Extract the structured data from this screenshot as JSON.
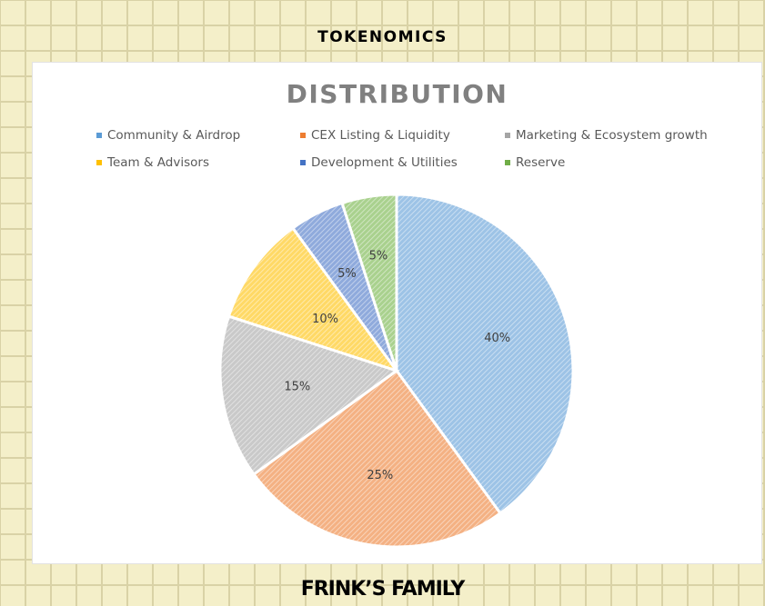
{
  "header": {
    "title": "TOKENOMICS"
  },
  "footer": {
    "title": "FRINK’S FAMILY"
  },
  "chart_data": {
    "type": "pie",
    "title": "DISTRIBUTION",
    "legend_position": "top",
    "categories": [
      "Community & Airdrop",
      "CEX Listing & Liquidity",
      "Marketing & Ecosystem growth",
      "Team & Advisors",
      "Development & Utilities",
      "Reserve"
    ],
    "values": [
      40,
      25,
      15,
      10,
      5,
      5
    ],
    "labels": [
      "40%",
      "25%",
      "15%",
      "10%",
      "5%",
      "5%"
    ],
    "colors": [
      "#9dc3e6",
      "#f4b183",
      "#c9c9c9",
      "#ffd966",
      "#8faadc",
      "#a9d18e"
    ],
    "legend_colors": [
      "#5b9bd5",
      "#ed7d31",
      "#a5a5a5",
      "#ffc000",
      "#4472c4",
      "#70ad47"
    ],
    "start_angle_deg": 0,
    "direction": "clockwise",
    "fill_style": "diagonal-hatch"
  }
}
